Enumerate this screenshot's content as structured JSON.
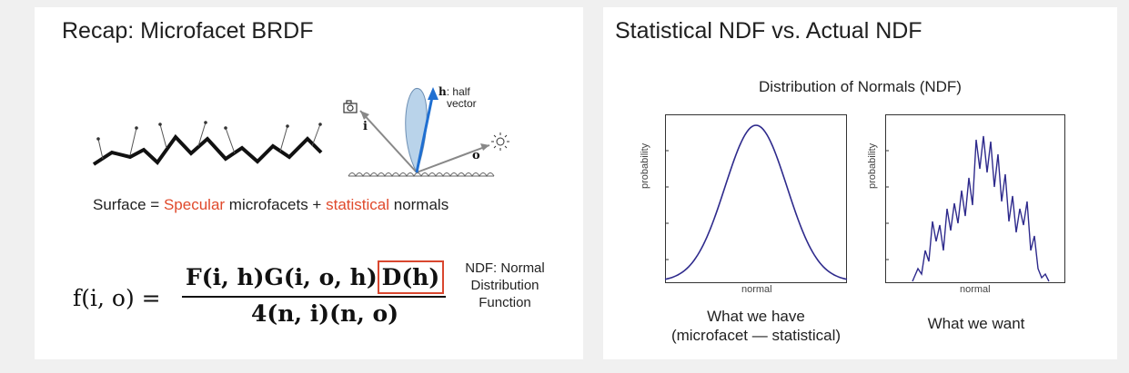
{
  "left": {
    "title": "Recap: Microfacet BRDF",
    "surface_caption": {
      "p1": "Surface = ",
      "specular": "Specular",
      "p2": " microfacets + ",
      "statistical": "statistical",
      "p3": " normals"
    },
    "diagram": {
      "h_label": "h",
      "h_text": ": half",
      "h_text2": "vector",
      "i_label": "i",
      "o_label": "o"
    },
    "equation": {
      "lhs": "f(i, o) =",
      "numerator_a": "F(i, h)G(i, o, h)",
      "numerator_b": "D(h)",
      "denominator": "4(n, i)(n, o)"
    },
    "ndf_note": [
      "NDF: Normal",
      "Distribution",
      "Function"
    ],
    "colors": {
      "accent_red": "#e04a2c",
      "box_red": "#d9472f",
      "arrow_blue": "#1f6fd1"
    }
  },
  "right": {
    "title": "Statistical NDF vs. Actual NDF",
    "subtitle": "Distribution of Normals (NDF)",
    "panels": [
      {
        "ylabel": "probability",
        "xlabel": "normal",
        "caption": [
          "What we have",
          "(microfacet — statistical)"
        ]
      },
      {
        "ylabel": "probability",
        "xlabel": "normal",
        "caption": [
          "What we want"
        ]
      }
    ],
    "colors": {
      "curve": "#2e2a8c"
    }
  }
}
